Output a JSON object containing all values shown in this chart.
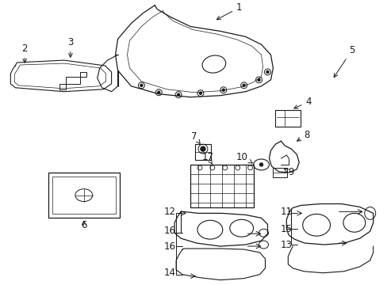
{
  "bg_color": "#ffffff",
  "line_color": "#1a1a1a",
  "figsize": [
    4.89,
    3.6
  ],
  "dpi": 100,
  "label_fs": 8.5
}
